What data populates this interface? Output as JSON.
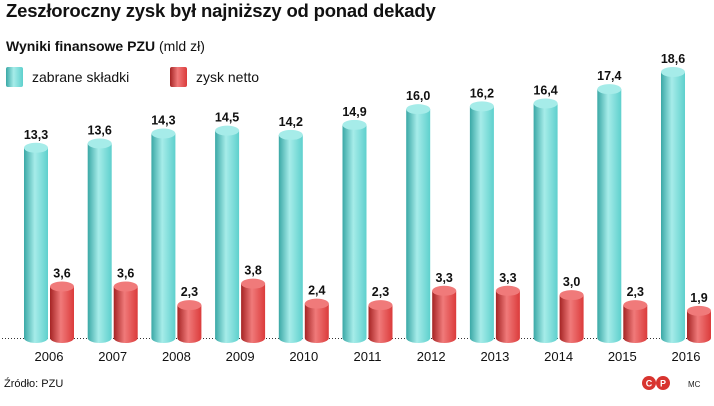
{
  "title": "Zeszłoroczny zysk był najniższy od ponad dekady",
  "subtitle_bold": "Wyniki finansowe PZU",
  "subtitle_unit": "(mld zł)",
  "source": "Źródło: PZU",
  "credit": "MC",
  "logo_text": "©P",
  "colors": {
    "premiums": "#5ed0cd",
    "premiums_dark": "#3aa8a6",
    "premiums_light": "#a6ece9",
    "profit": "#db3b3b",
    "profit_dark": "#a52424",
    "profit_light": "#f07a7a"
  },
  "chart_data": {
    "type": "bar",
    "categories": [
      "2006",
      "2007",
      "2008",
      "2009",
      "2010",
      "2011",
      "2012",
      "2013",
      "2014",
      "2015",
      "2016"
    ],
    "series": [
      {
        "name": "zabrane składki",
        "values": [
          13.3,
          13.6,
          14.3,
          14.5,
          14.2,
          14.9,
          16.0,
          16.2,
          16.4,
          17.4,
          18.6
        ],
        "labels": [
          "13,3",
          "13,6",
          "14,3",
          "14,5",
          "14,2",
          "14,9",
          "16,0",
          "16,2",
          "16,4",
          "17,4",
          "18,6"
        ]
      },
      {
        "name": "zysk netto",
        "values": [
          3.6,
          3.6,
          2.3,
          3.8,
          2.4,
          2.3,
          3.3,
          3.3,
          3.0,
          2.3,
          1.9
        ],
        "labels": [
          "3,6",
          "3,6",
          "2,3",
          "3,8",
          "2,4",
          "2,3",
          "3,3",
          "3,3",
          "3,0",
          "2,3",
          "1,9"
        ]
      }
    ],
    "ylim": [
      0,
      18.6
    ],
    "grid": false,
    "legend_position": "top-left"
  }
}
